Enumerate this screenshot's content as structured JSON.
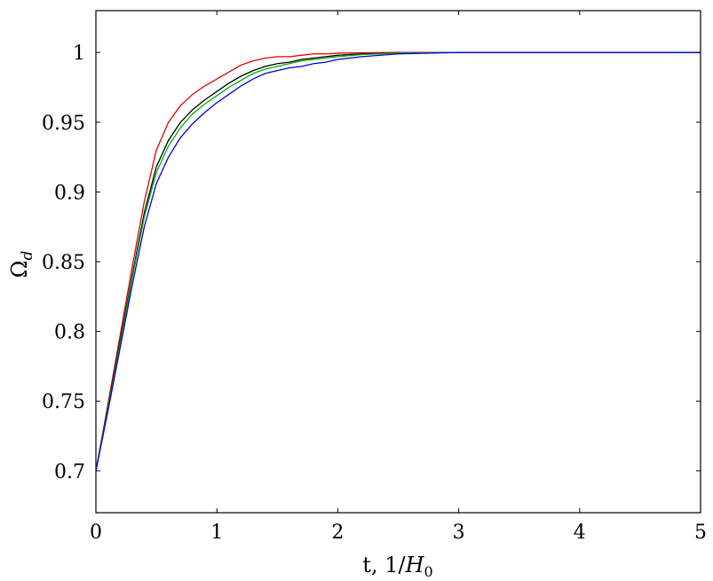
{
  "chart_data": {
    "type": "line",
    "title": "",
    "xlabel": "t, 1/H₀",
    "ylabel": "Ω_d",
    "xlim": [
      0,
      5
    ],
    "ylim": [
      0.67,
      1.03
    ],
    "xticks": [
      "0",
      "1",
      "2",
      "3",
      "4",
      "5"
    ],
    "yticks": [
      "0.7",
      "0.75",
      "0.8",
      "0.85",
      "0.9",
      "0.95",
      "1"
    ],
    "grid": false,
    "legend": "none",
    "series": [
      {
        "color": "#e00000",
        "x": [
          0,
          0.1,
          0.2,
          0.3,
          0.4,
          0.5,
          0.6,
          0.7,
          0.8,
          0.9,
          1.0,
          1.1,
          1.2,
          1.3,
          1.4,
          1.5,
          1.6,
          1.7,
          1.8,
          1.9,
          2.0,
          2.2,
          2.5,
          3.0,
          4.0,
          5.0
        ],
        "y": [
          0.7,
          0.748,
          0.797,
          0.846,
          0.893,
          0.93,
          0.95,
          0.962,
          0.97,
          0.976,
          0.981,
          0.986,
          0.991,
          0.994,
          0.996,
          0.997,
          0.997,
          0.998,
          0.999,
          0.999,
          0.9995,
          0.9998,
          1.0,
          1.0,
          1.0,
          1.0
        ]
      },
      {
        "color": "#000000",
        "x": [
          0,
          0.1,
          0.2,
          0.3,
          0.4,
          0.5,
          0.6,
          0.7,
          0.8,
          0.9,
          1.0,
          1.1,
          1.2,
          1.3,
          1.4,
          1.5,
          1.6,
          1.7,
          1.8,
          1.9,
          2.0,
          2.2,
          2.5,
          3.0,
          4.0,
          5.0
        ],
        "y": [
          0.7,
          0.746,
          0.793,
          0.84,
          0.885,
          0.918,
          0.937,
          0.95,
          0.959,
          0.966,
          0.972,
          0.978,
          0.983,
          0.987,
          0.99,
          0.992,
          0.993,
          0.995,
          0.996,
          0.997,
          0.998,
          0.999,
          0.9995,
          1.0,
          1.0,
          1.0
        ]
      },
      {
        "color": "#00b000",
        "x": [
          0,
          0.1,
          0.2,
          0.3,
          0.4,
          0.5,
          0.6,
          0.7,
          0.8,
          0.9,
          1.0,
          1.1,
          1.2,
          1.3,
          1.4,
          1.5,
          1.6,
          1.7,
          1.8,
          1.9,
          2.0,
          2.2,
          2.5,
          3.0,
          4.0,
          5.0
        ],
        "y": [
          0.7,
          0.745,
          0.791,
          0.838,
          0.882,
          0.914,
          0.933,
          0.946,
          0.956,
          0.963,
          0.969,
          0.975,
          0.98,
          0.985,
          0.988,
          0.99,
          0.992,
          0.994,
          0.995,
          0.996,
          0.997,
          0.9985,
          0.9995,
          1.0,
          1.0,
          1.0
        ]
      },
      {
        "color": "#0000e0",
        "x": [
          0,
          0.1,
          0.2,
          0.3,
          0.4,
          0.5,
          0.6,
          0.7,
          0.8,
          0.9,
          1.0,
          1.1,
          1.2,
          1.3,
          1.4,
          1.5,
          1.6,
          1.7,
          1.8,
          1.9,
          2.0,
          2.2,
          2.5,
          3.0,
          4.0,
          5.0
        ],
        "y": [
          0.7,
          0.743,
          0.788,
          0.833,
          0.875,
          0.906,
          0.925,
          0.939,
          0.949,
          0.957,
          0.964,
          0.97,
          0.976,
          0.981,
          0.985,
          0.987,
          0.989,
          0.99,
          0.992,
          0.993,
          0.995,
          0.997,
          0.999,
          1.0,
          1.0,
          1.0
        ]
      }
    ]
  }
}
